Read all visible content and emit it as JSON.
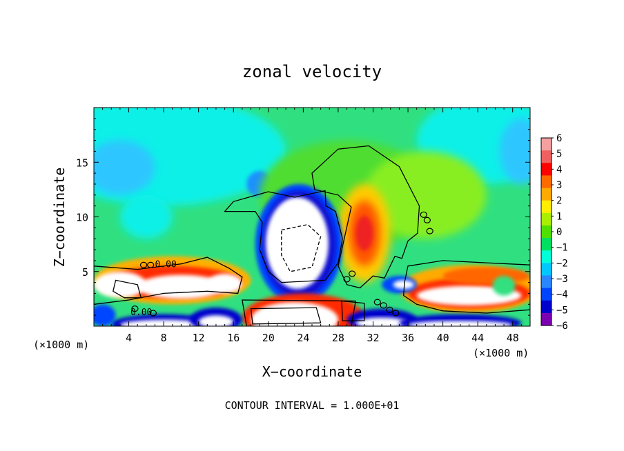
{
  "chart_data": {
    "type": "heatmap",
    "title": "zonal velocity",
    "xlabel": "X−coordinate",
    "ylabel": "Z−coordinate",
    "x_unit": "(×1000 m)",
    "z_unit": "(×1000 m)",
    "footer": "CONTOUR INTERVAL = 1.000E+01",
    "xlim": [
      0,
      50
    ],
    "ylim": [
      0,
      20
    ],
    "x_ticks": [
      "4",
      "8",
      "12",
      "16",
      "20",
      "24",
      "28",
      "32",
      "36",
      "40",
      "44",
      "48"
    ],
    "x_tick_values": [
      4,
      8,
      12,
      16,
      20,
      24,
      28,
      32,
      36,
      40,
      44,
      48
    ],
    "y_ticks": [
      "5",
      "10",
      "15"
    ],
    "y_tick_values": [
      5,
      10,
      15
    ],
    "contour_labels": [
      "0.00",
      "0.00"
    ],
    "colorbar": {
      "labels": [
        "6",
        "5",
        "4",
        "3",
        "2",
        "1",
        "0",
        "−1",
        "−2",
        "−3",
        "−4",
        "−5",
        "−6"
      ],
      "range": [
        -6,
        6
      ],
      "colors": [
        "#f4a0a0",
        "#f06060",
        "#ff0000",
        "#ff6a00",
        "#ffaa00",
        "#ffee00",
        "#aaee00",
        "#50e000",
        "#00e060",
        "#00ffd8",
        "#00c8ff",
        "#2a86ff",
        "#0044ff",
        "#0000cc",
        "#7a00b0"
      ]
    },
    "saturated_color": "#ffffff"
  }
}
